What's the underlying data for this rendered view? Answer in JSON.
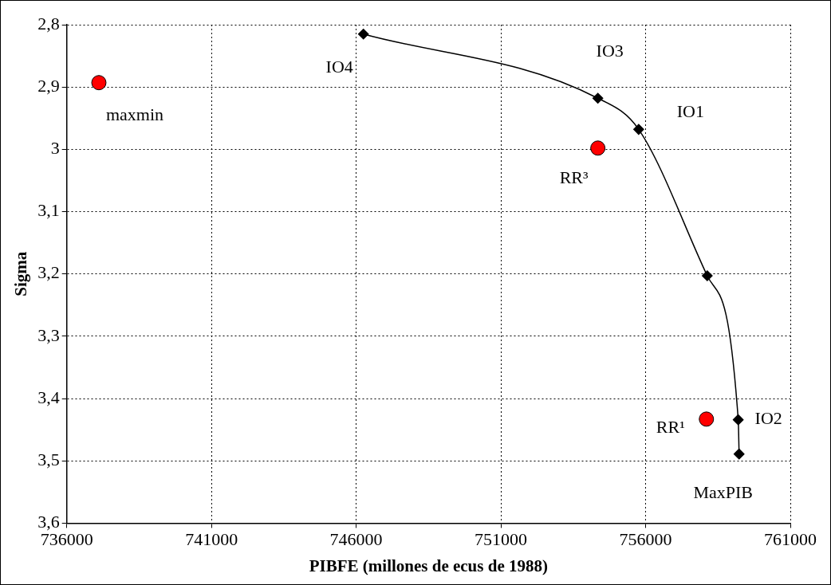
{
  "chart_data": {
    "type": "line",
    "xlabel": "PIBFE (millones de ecus de 1988)",
    "ylabel": "Sigma",
    "xlim": [
      736000,
      761000
    ],
    "xticks": [
      736000,
      741000,
      746000,
      751000,
      756000,
      761000
    ],
    "ylim": [
      3.6,
      2.8
    ],
    "yticks": [
      {
        "value": 2.8,
        "label": "2,8"
      },
      {
        "value": 2.9,
        "label": "2,9"
      },
      3,
      {
        "value": 3.1,
        "label": "3,1"
      },
      {
        "value": 3.2,
        "label": "3,2"
      },
      {
        "value": 3.3,
        "label": "3,3"
      },
      {
        "value": 3.4,
        "label": "3,4"
      },
      {
        "value": 3.5,
        "label": "3,5"
      },
      {
        "value": 3.6,
        "label": "3,6"
      }
    ],
    "grid": true,
    "series": [
      {
        "color": "#000000",
        "marker": "diamond",
        "x": [
          746250,
          754350,
          755760,
          758130,
          759200,
          759230
        ],
        "values": [
          2.815,
          2.918,
          2.968,
          3.203,
          3.434,
          3.489
        ]
      },
      {
        "type": "scatter",
        "color": "#ff0000",
        "marker": "circle",
        "x": [
          737110,
          754350,
          758100
        ],
        "values": [
          2.893,
          2.998,
          3.433
        ]
      }
    ],
    "annotations": [
      {
        "text": "IO4",
        "x": 746250,
        "y": 2.815
      },
      {
        "text": "IO3",
        "x": 754350,
        "y": 2.918
      },
      {
        "text": "IO1",
        "x": 755760,
        "y": 2.968
      },
      {
        "text": "IO2",
        "x": 759200,
        "y": 3.434
      },
      {
        "text": "MaxPIB",
        "x": 759230,
        "y": 3.489
      },
      {
        "text": "maxmin",
        "x": 737110,
        "y": 2.893
      },
      {
        "text": "RR³",
        "x": 754350,
        "y": 2.998
      },
      {
        "text": "RR¹",
        "x": 758100,
        "y": 3.433
      }
    ]
  }
}
